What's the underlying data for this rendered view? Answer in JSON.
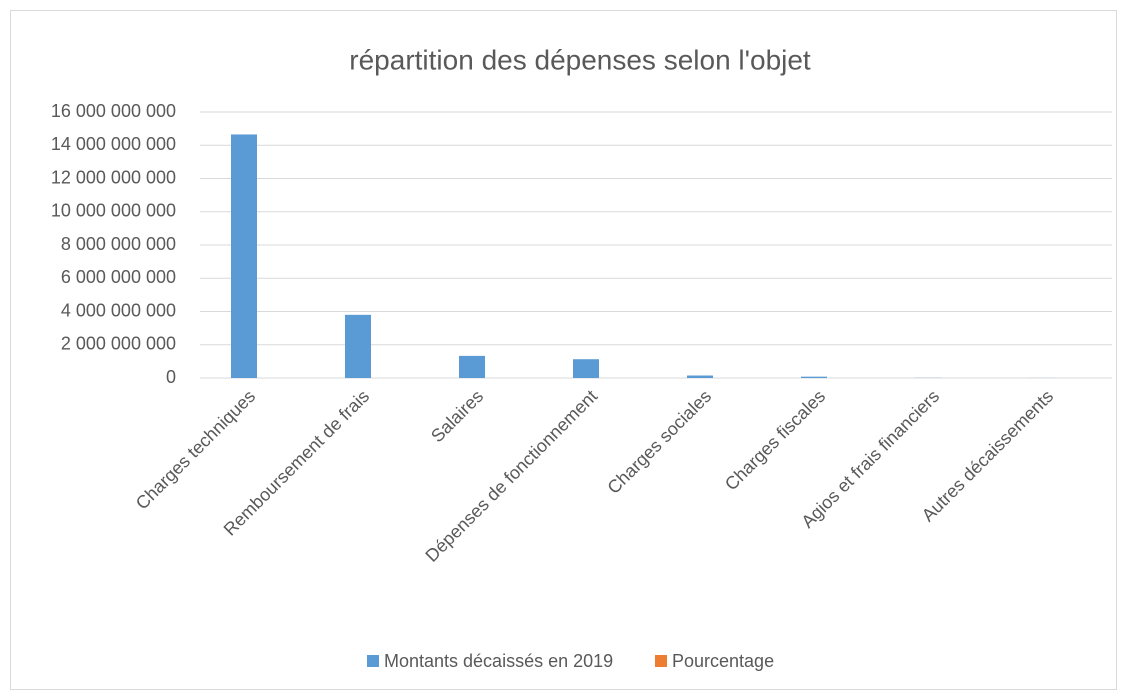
{
  "chart_data": {
    "type": "bar",
    "title": "répartition des dépenses selon l'objet",
    "categories": [
      "Charges techniques",
      "Remboursement de frais",
      "Salaires",
      "Dépenses de fonctionnement",
      "Charges sociales",
      "Charges fiscales",
      "Agios et frais financiers",
      "Autres décaissements"
    ],
    "series": [
      {
        "name": "Montants décaissés en 2019",
        "color": "#5b9bd5",
        "values": [
          14650000000,
          3800000000,
          1330000000,
          1130000000,
          150000000,
          80000000,
          10000000,
          5000000
        ]
      },
      {
        "name": "Pourcentage",
        "color": "#ed7d31",
        "values": [
          0,
          0,
          0,
          0,
          0,
          0,
          0,
          0
        ]
      }
    ],
    "ylim": [
      0,
      16000000000
    ],
    "yticks": [
      {
        "value": 0,
        "label": "0"
      },
      {
        "value": 2000000000,
        "label": "2 000 000 000"
      },
      {
        "value": 4000000000,
        "label": "4 000 000 000"
      },
      {
        "value": 6000000000,
        "label": "6 000 000 000"
      },
      {
        "value": 8000000000,
        "label": "8 000 000 000"
      },
      {
        "value": 10000000000,
        "label": "10 000 000 000"
      },
      {
        "value": 12000000000,
        "label": "12 000 000 000"
      },
      {
        "value": 14000000000,
        "label": "14 000 000 000"
      },
      {
        "value": 16000000000,
        "label": "16 000 000 000"
      }
    ],
    "grid": true,
    "legend": "bottom"
  }
}
